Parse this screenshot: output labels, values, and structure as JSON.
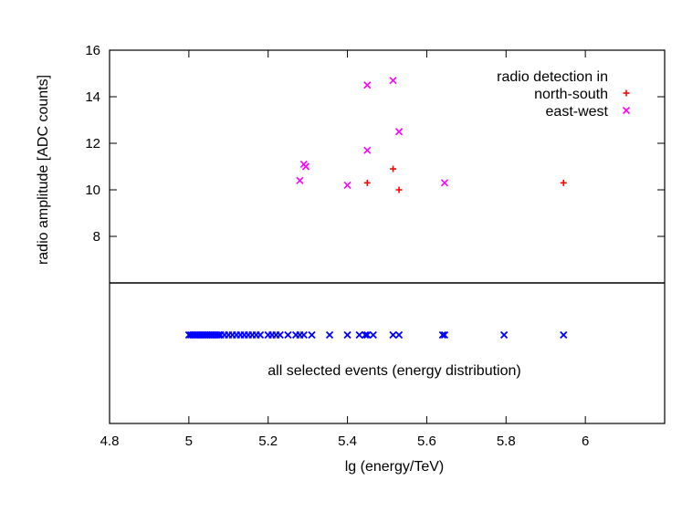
{
  "chart_data": {
    "type": "scatter",
    "xlabel": "lg (energy/TeV)",
    "ylabel": "radio amplitude [ADC counts]",
    "xlim": [
      4.8,
      6.2
    ],
    "ylim": [
      6,
      16
    ],
    "x_ticks": [
      4.8,
      5,
      5.2,
      5.4,
      5.6,
      5.8,
      6
    ],
    "x_tick_labels": [
      "4.8",
      "5",
      "5.2",
      "5.4",
      "5.6",
      "5.8",
      "6"
    ],
    "y_ticks": [
      8,
      10,
      12,
      14,
      16
    ],
    "y_tick_labels": [
      "8",
      "10",
      "12",
      "14",
      "16"
    ],
    "legend": {
      "title": "radio detection in",
      "position": "top-right",
      "entries": [
        {
          "label": "north-south",
          "color": "#ff0000",
          "marker": "plus"
        },
        {
          "label": "east-west",
          "color": "#ff00ff",
          "marker": "cross"
        }
      ]
    },
    "series": [
      {
        "name": "north-south",
        "color": "#ff0000",
        "marker": "plus",
        "points": [
          [
            5.45,
            10.3
          ],
          [
            5.515,
            10.9
          ],
          [
            5.53,
            10.0
          ],
          [
            5.945,
            10.3
          ]
        ]
      },
      {
        "name": "east-west",
        "color": "#ff00ff",
        "marker": "cross",
        "points": [
          [
            5.28,
            10.4
          ],
          [
            5.29,
            11.1
          ],
          [
            5.295,
            11.0
          ],
          [
            5.4,
            10.2
          ],
          [
            5.45,
            14.5
          ],
          [
            5.45,
            11.7
          ],
          [
            5.515,
            14.7
          ],
          [
            5.53,
            12.5
          ],
          [
            5.645,
            10.3
          ]
        ]
      }
    ],
    "lower_panel": {
      "annotation": "all selected events (energy distribution)",
      "color": "#0000ff",
      "marker": "cross",
      "x_values": [
        5.0,
        5.005,
        5.01,
        5.015,
        5.02,
        5.025,
        5.03,
        5.035,
        5.04,
        5.045,
        5.05,
        5.055,
        5.06,
        5.065,
        5.07,
        5.075,
        5.08,
        5.09,
        5.1,
        5.11,
        5.12,
        5.13,
        5.14,
        5.15,
        5.16,
        5.17,
        5.18,
        5.2,
        5.21,
        5.22,
        5.23,
        5.25,
        5.27,
        5.28,
        5.29,
        5.31,
        5.355,
        5.4,
        5.43,
        5.445,
        5.45,
        5.465,
        5.515,
        5.53,
        5.64,
        5.645,
        5.795,
        5.945
      ]
    }
  }
}
